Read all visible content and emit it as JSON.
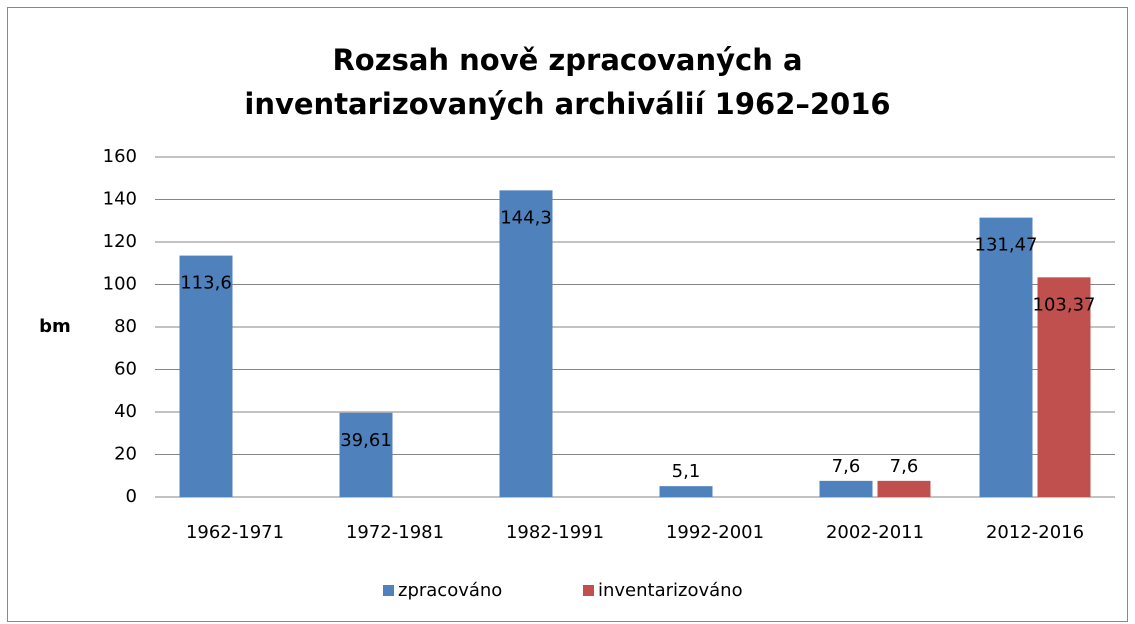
{
  "chart_data": {
    "type": "bar",
    "title": "Rozsah nově zpracovaných a inventarizovaných archiválií 1962–2016",
    "ylabel": "bm",
    "categories": [
      "1962-1971",
      "1972-1981",
      "1982-1991",
      "1992-2001",
      "2002-2011",
      "2012-2016"
    ],
    "series": [
      {
        "name": "zpracováno",
        "color": "#4f81bd",
        "values": [
          113.6,
          39.61,
          144.3,
          5.1,
          7.6,
          131.47
        ],
        "value_labels": [
          "113,6",
          "39,61",
          "144,3",
          "5,1",
          "7,6",
          "131,47"
        ]
      },
      {
        "name": "inventarizováno",
        "color": "#c0504d",
        "values": [
          null,
          null,
          null,
          null,
          7.6,
          103.37
        ],
        "value_labels": [
          null,
          null,
          null,
          null,
          "7,6",
          "103,37"
        ]
      }
    ],
    "ylim": [
      0,
      160
    ],
    "yticks": [
      0,
      20,
      40,
      60,
      80,
      100,
      120,
      140,
      160
    ],
    "grid": true,
    "legend": "bottom"
  }
}
